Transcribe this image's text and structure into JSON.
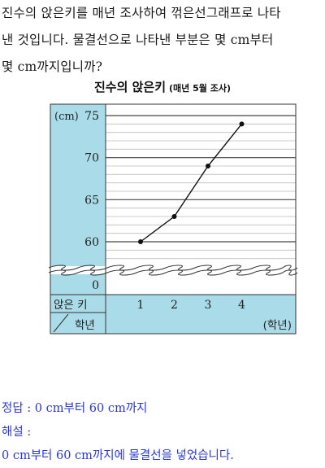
{
  "question": {
    "lines": [
      "진수의 앉은키를 매년 조사하여 꺾은선그래프로 나타",
      "낸 것입니다. 물결선으로 나타낸 부분은 몇 cm부터",
      "몇 cm까지입니까?"
    ]
  },
  "chart_data": {
    "type": "line",
    "title": "진수의 앉은키",
    "subtitle": "(매년 5월 조사)",
    "unit_label": "(cm)",
    "row_header_top": "앉은 키",
    "row_header_bottom": "학년",
    "xaxis_label": "(학년)",
    "x": [
      1,
      2,
      3,
      4
    ],
    "x_tick_labels": [
      "1",
      "2",
      "3",
      "4"
    ],
    "values": [
      60,
      63,
      69,
      74
    ],
    "y_tick_labels": [
      "75",
      "70",
      "65",
      "60",
      "0"
    ],
    "ylim": [
      60,
      75
    ],
    "y_break": [
      0,
      60
    ],
    "grid": true,
    "colors": {
      "panel": "#a9dbe8",
      "line": "#111111",
      "grid_major": "#444444",
      "grid_minor": "#bdbdbd"
    }
  },
  "answer": {
    "line1": "정답 : 0 cm부터 60 cm까지",
    "line2": "해설 :",
    "line3": "0 cm부터 60 cm까지에 물결선을 넣었습니다."
  }
}
